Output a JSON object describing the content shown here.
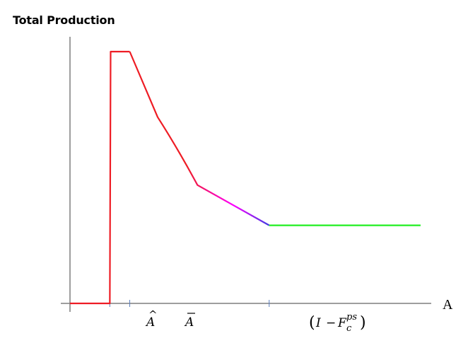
{
  "chart_data": {
    "type": "line",
    "title": "Total Production",
    "xlabel": "A",
    "ylabel": "",
    "grid": false,
    "x_ticks": [
      {
        "label": "Â",
        "x": 1
      },
      {
        "label": "Ā",
        "x": 1.5
      },
      {
        "label": "(I − F_c^{ps})",
        "x": 5
      }
    ],
    "xlim": [
      0,
      9.6
    ],
    "ylim": [
      0,
      1
    ],
    "series": [
      {
        "x": [
          0,
          1,
          1.02,
          1.5,
          2.2,
          3.2,
          5,
          8.8
        ],
        "y": [
          0,
          0,
          1,
          1,
          0.74,
          0.47,
          0.31,
          0.31
        ],
        "colors": [
          "#ee1c24",
          "#ee1c24",
          "#ee1c24",
          "#ee1c24",
          "#ff00ff",
          "#3344dd",
          "#22ee22",
          "#22ee22"
        ]
      }
    ]
  }
}
